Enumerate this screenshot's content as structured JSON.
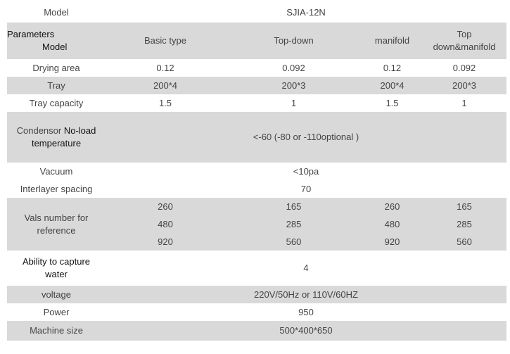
{
  "table": {
    "rows": [
      {
        "label": "Model",
        "cells": [
          "SJIA-12N"
        ]
      },
      {
        "label": [
          "Parameters",
          "Model"
        ],
        "cells": [
          "Basic type",
          "Top-down",
          "manifold",
          "Top down&manifold"
        ]
      },
      {
        "label": "Drying area",
        "cells": [
          "0.12",
          "0.092",
          "0.12",
          "0.092"
        ]
      },
      {
        "label": "Tray",
        "cells": [
          "200*4",
          "200*3",
          "200*4",
          "200*3"
        ]
      },
      {
        "label": "Tray capacity",
        "cells": [
          "1.5",
          "1",
          "1.5",
          "1"
        ]
      },
      {
        "label": [
          "Condensor",
          "No-load temperature"
        ],
        "cells": [
          "<-60 (-80 or -110optional )"
        ]
      },
      {
        "label": "Vacuum",
        "cells": [
          "<10pa"
        ]
      },
      {
        "label": "Interlayer spacing",
        "cells": [
          "70"
        ]
      },
      {
        "label": "Vals number for reference",
        "cells": [
          [
            "260",
            "165",
            "260",
            "165"
          ],
          [
            "480",
            "285",
            "480",
            "285"
          ],
          [
            "920",
            "560",
            "920",
            "560"
          ]
        ]
      },
      {
        "label": "Ability to capture water",
        "cells": [
          "4"
        ]
      },
      {
        "label": "voltage",
        "cells": [
          "220V/50Hz or 110V/60HZ"
        ]
      },
      {
        "label": "Power",
        "cells": [
          "950"
        ]
      },
      {
        "label": "Machine size",
        "cells": [
          "500*400*650"
        ]
      }
    ]
  }
}
